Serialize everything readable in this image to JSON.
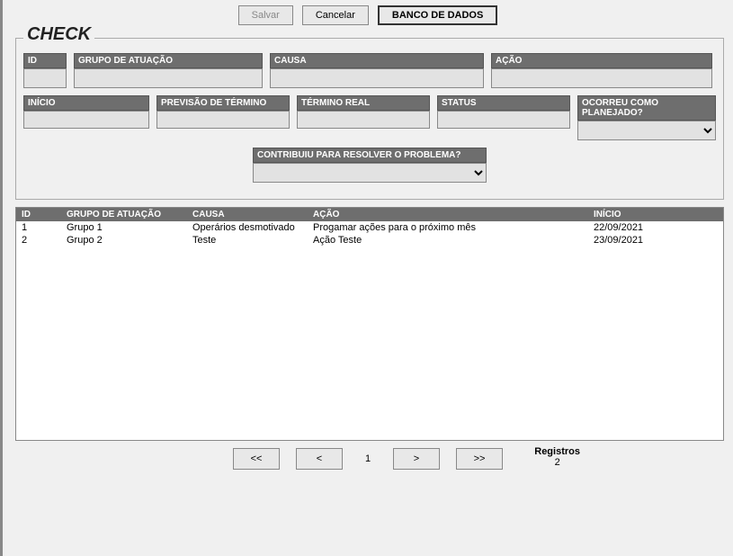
{
  "toolbar": {
    "save_label": "Salvar",
    "cancel_label": "Cancelar",
    "database_label": "BANCO DE DADOS"
  },
  "fieldset": {
    "legend": "CHECK",
    "fields": {
      "id": {
        "label": "ID",
        "value": ""
      },
      "grupo": {
        "label": "GRUPO DE ATUAÇÃO",
        "value": ""
      },
      "causa": {
        "label": "CAUSA",
        "value": ""
      },
      "acao": {
        "label": "AÇÃO",
        "value": ""
      },
      "inicio": {
        "label": "INÍCIO",
        "value": ""
      },
      "previsao": {
        "label": "PREVISÃO DE TÉRMINO",
        "value": ""
      },
      "termino": {
        "label": "TÉRMINO REAL",
        "value": ""
      },
      "status": {
        "label": "STATUS",
        "value": ""
      },
      "planejado": {
        "label": "OCORREU COMO PLANEJADO?",
        "value": ""
      },
      "contribuiu": {
        "label": "CONTRIBUIU PARA RESOLVER O PROBLEMA?",
        "value": ""
      }
    }
  },
  "grid": {
    "columns": {
      "id": "ID",
      "grupo": "GRUPO DE ATUAÇÃO",
      "causa": "CAUSA",
      "acao": "AÇÃO",
      "inicio": "INÍCIO"
    },
    "rows": [
      {
        "id": "1",
        "grupo": "Grupo 1",
        "causa": "Operários desmotivado",
        "acao": "Progamar ações para o próximo mês",
        "inicio": "22/09/2021"
      },
      {
        "id": "2",
        "grupo": "Grupo 2",
        "causa": "Teste",
        "acao": "Ação Teste",
        "inicio": "23/09/2021"
      }
    ]
  },
  "pager": {
    "first": "<<",
    "prev": "<",
    "page": "1",
    "next": ">",
    "last": ">>",
    "records_label": "Registros",
    "records_count": "2"
  }
}
